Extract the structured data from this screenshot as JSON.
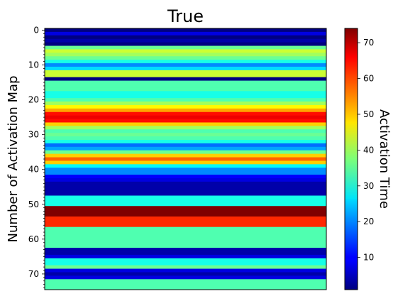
{
  "chart_data": {
    "type": "heatmap",
    "title": "True",
    "xlabel": "",
    "ylabel": "Number of Activation Map",
    "colorbar_label": "Activation Time",
    "colormap": "jet",
    "value_range": [
      1,
      74
    ],
    "y_range": [
      -0.5,
      74.5
    ],
    "y_ticks": [
      0,
      10,
      20,
      30,
      40,
      50,
      60,
      70
    ],
    "colorbar_ticks": [
      10,
      20,
      30,
      40,
      50,
      60,
      70
    ],
    "x_ticks_shown": false,
    "rows": 75,
    "values": [
      1,
      8,
      1,
      4,
      1,
      36,
      43,
      40,
      36,
      30,
      20,
      26,
      43,
      43,
      1,
      34,
      34,
      34,
      30,
      30,
      34,
      40,
      47,
      53,
      64,
      66,
      64,
      50,
      40,
      34,
      36,
      34,
      30,
      18,
      22,
      36,
      50,
      58,
      50,
      28,
      20,
      20,
      10,
      8,
      4,
      4,
      4,
      4,
      30,
      30,
      30,
      74,
      74,
      74,
      62,
      62,
      62,
      34,
      34,
      34,
      34,
      34,
      34,
      4,
      4,
      8,
      30,
      30,
      36,
      8,
      4,
      8,
      34,
      34,
      34
    ]
  }
}
